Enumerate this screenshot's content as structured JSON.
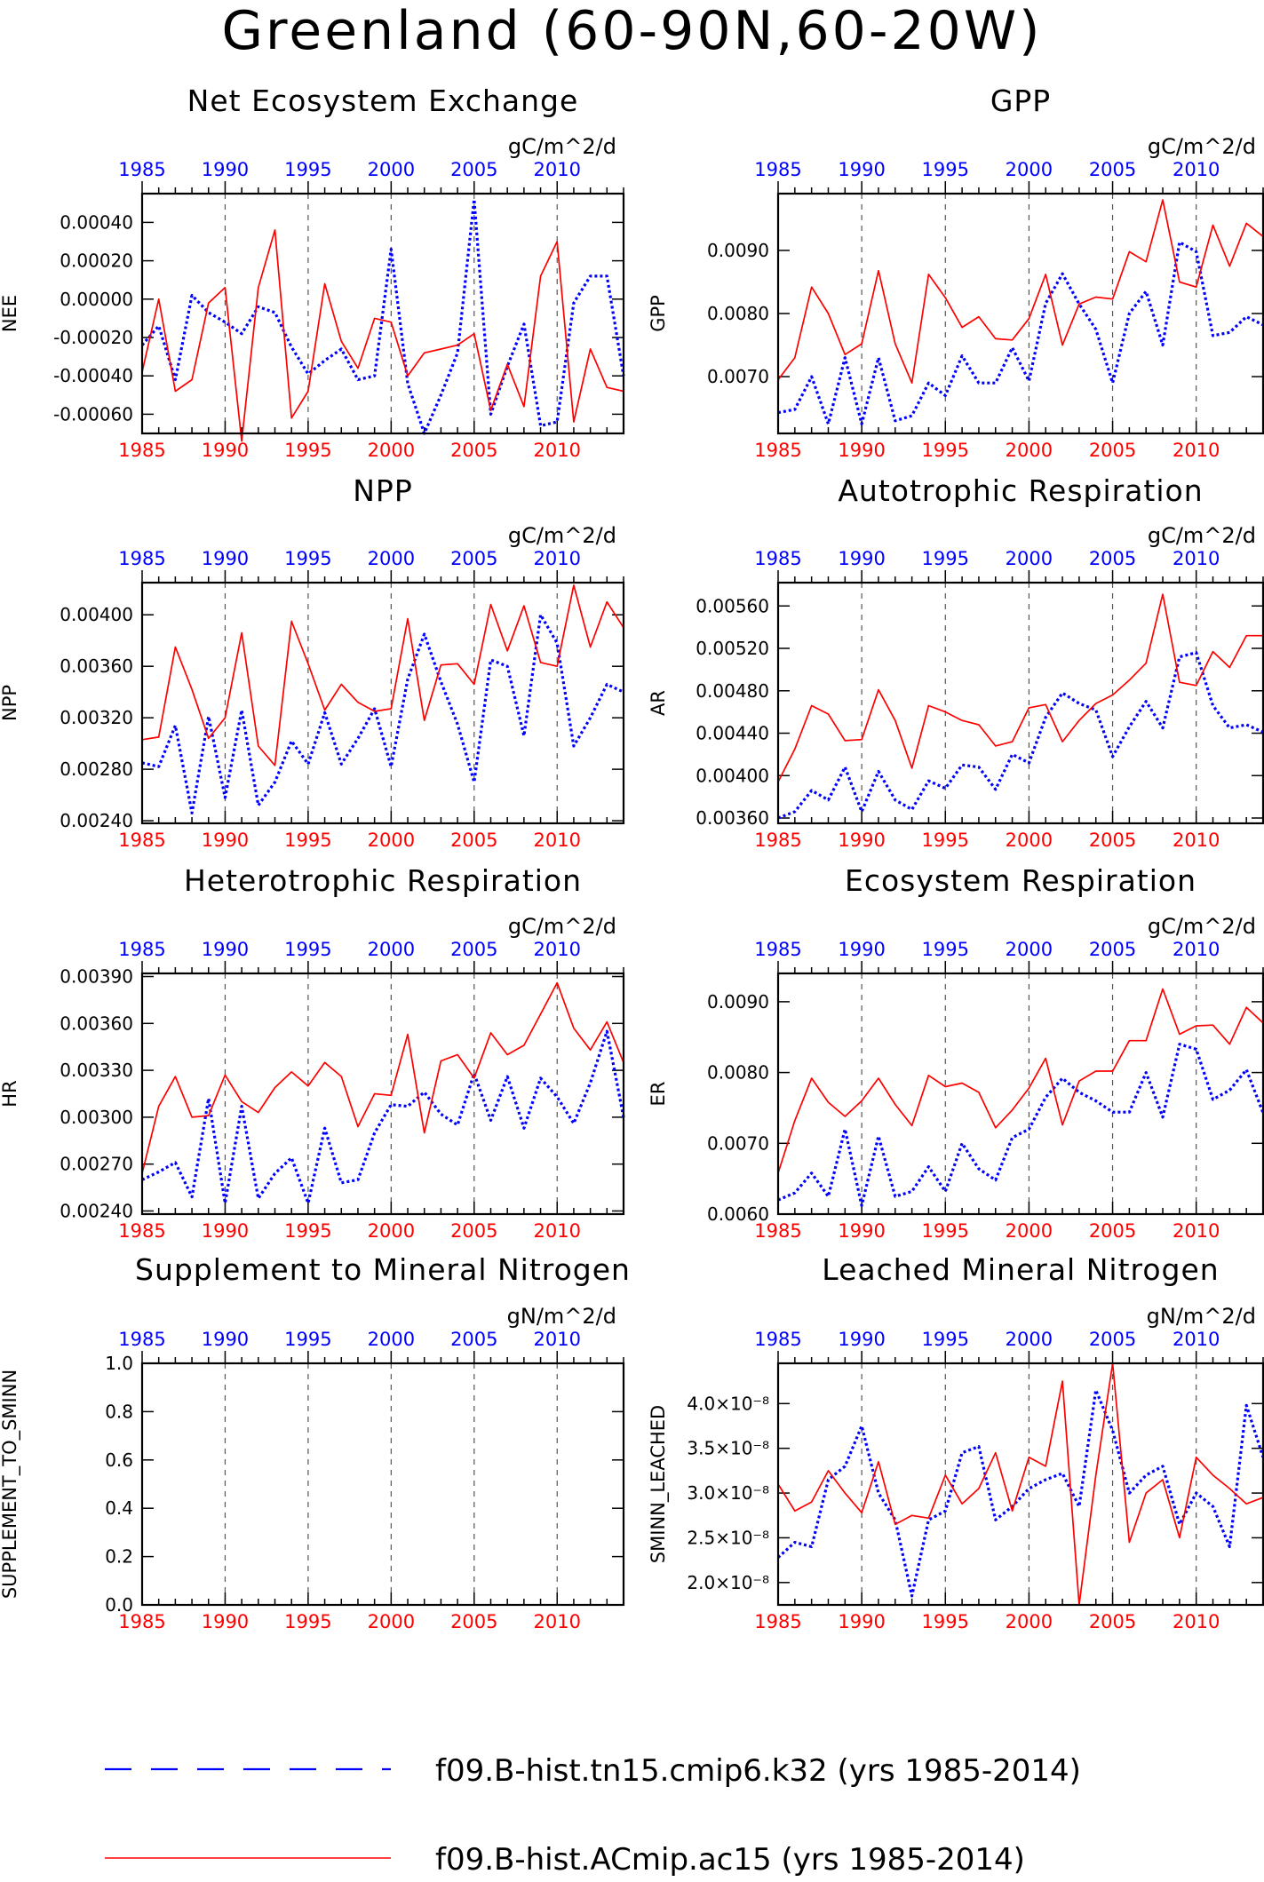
{
  "title": "Greenland (60-90N,60-20W)",
  "colors": {
    "series_a": "#0000ff",
    "series_b": "#ff0000",
    "axis": "#000000"
  },
  "legend": [
    {
      "label": "f09.B-hist.tn15.cmip6.k32 (yrs 1985-2014)",
      "color": "#0000ff",
      "style": "dashed"
    },
    {
      "label": "f09.B-hist.ACmip.ac15 (yrs 1985-2014)",
      "color": "#ff0000",
      "style": "solid"
    }
  ],
  "chart_data": [
    {
      "type": "line",
      "title": "Net Ecosystem Exchange",
      "units": "gC/m^2/d",
      "ylabel": "NEE",
      "xlim": [
        1985,
        2014
      ],
      "ylim": [
        -0.0007,
        0.00055
      ],
      "yticks": [
        -0.0006,
        -0.0004,
        -0.0002,
        0.0,
        0.0002,
        0.0004
      ],
      "ytick_labels": [
        "-0.00060",
        "-0.00040",
        "-0.00020",
        "0.00000",
        "0.00020",
        "0.00040"
      ],
      "x": [
        1985,
        1986,
        1987,
        1988,
        1989,
        1990,
        1991,
        1992,
        1993,
        1994,
        1995,
        1996,
        1997,
        1998,
        1999,
        2000,
        2001,
        2002,
        2003,
        2004,
        2005,
        2006,
        2007,
        2008,
        2009,
        2010,
        2011,
        2012,
        2013,
        2014
      ],
      "series": [
        {
          "values": [
            -0.00024,
            -0.00014,
            -0.00042,
            2e-05,
            -7e-05,
            -0.00012,
            -0.00018,
            -4e-05,
            -7e-05,
            -0.00025,
            -0.00039,
            -0.00032,
            -0.00026,
            -0.00042,
            -0.0004,
            0.00026,
            -0.00044,
            -0.0007,
            -0.0005,
            -0.00028,
            0.00052,
            -0.0006,
            -0.00035,
            -0.00013,
            -0.00066,
            -0.00064,
            -2e-05,
            0.00012,
            0.00012,
            -0.0004
          ]
        },
        {
          "values": [
            -0.00038,
            0.0,
            -0.00048,
            -0.00042,
            -2e-05,
            6e-05,
            -0.00074,
            6e-05,
            0.00036,
            -0.00062,
            -0.00048,
            8e-05,
            -0.00022,
            -0.00036,
            -0.0001,
            -0.00012,
            -0.0004,
            -0.00028,
            -0.00026,
            -0.00024,
            -0.00018,
            -0.00058,
            -0.00034,
            -0.00056,
            0.00012,
            0.0003,
            -0.00064,
            -0.00026,
            -0.00046,
            -0.00048
          ]
        }
      ]
    },
    {
      "type": "line",
      "title": "GPP",
      "units": "gC/m^2/d",
      "ylabel": "GPP",
      "xlim": [
        1985,
        2014
      ],
      "ylim": [
        0.0061,
        0.0099
      ],
      "yticks": [
        0.007,
        0.008,
        0.009
      ],
      "ytick_labels": [
        "0.0070",
        "0.0080",
        "0.0090"
      ],
      "x": [
        1985,
        1986,
        1987,
        1988,
        1989,
        1990,
        1991,
        1992,
        1993,
        1994,
        1995,
        1996,
        1997,
        1998,
        1999,
        2000,
        2001,
        2002,
        2003,
        2004,
        2005,
        2006,
        2007,
        2008,
        2009,
        2010,
        2011,
        2012,
        2013,
        2014
      ],
      "series": [
        {
          "values": [
            0.00643,
            0.00648,
            0.007,
            0.00625,
            0.0073,
            0.00625,
            0.0073,
            0.0063,
            0.00638,
            0.0069,
            0.0067,
            0.00733,
            0.0069,
            0.0069,
            0.00746,
            0.00693,
            0.00816,
            0.00863,
            0.00815,
            0.00775,
            0.0069,
            0.008,
            0.00835,
            0.0075,
            0.00913,
            0.00898,
            0.00765,
            0.0077,
            0.00795,
            0.00782
          ]
        },
        {
          "values": [
            0.00695,
            0.0073,
            0.00842,
            0.008,
            0.00735,
            0.00752,
            0.00868,
            0.00752,
            0.0069,
            0.00862,
            0.00825,
            0.00778,
            0.00795,
            0.0076,
            0.00758,
            0.00792,
            0.00862,
            0.0075,
            0.00815,
            0.00826,
            0.00823,
            0.00898,
            0.00882,
            0.0098,
            0.0085,
            0.00842,
            0.0094,
            0.00875,
            0.00943,
            0.00922
          ]
        }
      ]
    },
    {
      "type": "line",
      "title": "NPP",
      "units": "gC/m^2/d",
      "ylabel": "NPP",
      "xlim": [
        1985,
        2014
      ],
      "ylim": [
        0.00238,
        0.00425
      ],
      "yticks": [
        0.0024,
        0.0028,
        0.0032,
        0.0036,
        0.004
      ],
      "ytick_labels": [
        "0.00240",
        "0.00280",
        "0.00320",
        "0.00360",
        "0.00400"
      ],
      "x": [
        1985,
        1986,
        1987,
        1988,
        1989,
        1990,
        1991,
        1992,
        1993,
        1994,
        1995,
        1996,
        1997,
        1998,
        1999,
        2000,
        2001,
        2002,
        2003,
        2004,
        2005,
        2006,
        2007,
        2008,
        2009,
        2010,
        2011,
        2012,
        2013,
        2014
      ],
      "series": [
        {
          "values": [
            0.00285,
            0.00282,
            0.00314,
            0.00246,
            0.00321,
            0.00258,
            0.00326,
            0.00252,
            0.0027,
            0.00302,
            0.00284,
            0.00324,
            0.00284,
            0.00304,
            0.00327,
            0.00282,
            0.0035,
            0.00385,
            0.00348,
            0.00315,
            0.0027,
            0.00365,
            0.0036,
            0.00306,
            0.004,
            0.00378,
            0.00298,
            0.0032,
            0.00346,
            0.0034
          ]
        },
        {
          "values": [
            0.00303,
            0.00305,
            0.00375,
            0.00342,
            0.00304,
            0.0032,
            0.00386,
            0.00298,
            0.00283,
            0.00395,
            0.00362,
            0.00326,
            0.00346,
            0.00332,
            0.00325,
            0.00327,
            0.00397,
            0.00318,
            0.00361,
            0.00362,
            0.00346,
            0.00408,
            0.00372,
            0.00407,
            0.00363,
            0.0036,
            0.00423,
            0.00375,
            0.0041,
            0.0039
          ]
        }
      ]
    },
    {
      "type": "line",
      "title": "Autotrophic Respiration",
      "units": "gC/m^2/d",
      "ylabel": "AR",
      "xlim": [
        1985,
        2014
      ],
      "ylim": [
        0.00355,
        0.00582
      ],
      "yticks": [
        0.0036,
        0.004,
        0.0044,
        0.0048,
        0.0052,
        0.0056
      ],
      "ytick_labels": [
        "0.00360",
        "0.00400",
        "0.00440",
        "0.00480",
        "0.00520",
        "0.00560"
      ],
      "x": [
        1985,
        1986,
        1987,
        1988,
        1989,
        1990,
        1991,
        1992,
        1993,
        1994,
        1995,
        1996,
        1997,
        1998,
        1999,
        2000,
        2001,
        2002,
        2003,
        2004,
        2005,
        2006,
        2007,
        2008,
        2009,
        2010,
        2011,
        2012,
        2013,
        2014
      ],
      "series": [
        {
          "values": [
            0.0036,
            0.00366,
            0.00386,
            0.00377,
            0.00408,
            0.00366,
            0.00404,
            0.00377,
            0.00368,
            0.00395,
            0.00388,
            0.0041,
            0.00408,
            0.00387,
            0.0042,
            0.00412,
            0.00455,
            0.00478,
            0.00468,
            0.00462,
            0.00418,
            0.00446,
            0.0047,
            0.00445,
            0.00512,
            0.00516,
            0.00466,
            0.00445,
            0.00448,
            0.00441
          ]
        },
        {
          "values": [
            0.00394,
            0.00425,
            0.00466,
            0.00458,
            0.00433,
            0.00434,
            0.00481,
            0.00452,
            0.00407,
            0.00466,
            0.0046,
            0.00452,
            0.00448,
            0.00428,
            0.00432,
            0.00464,
            0.00467,
            0.00432,
            0.00452,
            0.00468,
            0.00476,
            0.0049,
            0.00506,
            0.00571,
            0.00488,
            0.00485,
            0.00517,
            0.00502,
            0.00532,
            0.00532
          ]
        }
      ]
    },
    {
      "type": "line",
      "title": "Heterotrophic Respiration",
      "units": "gC/m^2/d",
      "ylabel": "HR",
      "xlim": [
        1985,
        2014
      ],
      "ylim": [
        0.00238,
        0.00392
      ],
      "yticks": [
        0.0024,
        0.0027,
        0.003,
        0.0033,
        0.0036,
        0.0039
      ],
      "ytick_labels": [
        "0.00240",
        "0.00270",
        "0.00300",
        "0.00330",
        "0.00360",
        "0.00390"
      ],
      "x": [
        1985,
        1986,
        1987,
        1988,
        1989,
        1990,
        1991,
        1992,
        1993,
        1994,
        1995,
        1996,
        1997,
        1998,
        1999,
        2000,
        2001,
        2002,
        2003,
        2004,
        2005,
        2006,
        2007,
        2008,
        2009,
        2010,
        2011,
        2012,
        2013,
        2014
      ],
      "series": [
        {
          "values": [
            0.0026,
            0.00265,
            0.00271,
            0.00249,
            0.00312,
            0.00245,
            0.00307,
            0.00248,
            0.00264,
            0.00274,
            0.00245,
            0.00293,
            0.00258,
            0.0026,
            0.0029,
            0.00308,
            0.00307,
            0.00316,
            0.00302,
            0.00295,
            0.00328,
            0.00298,
            0.00326,
            0.00293,
            0.00325,
            0.00313,
            0.00296,
            0.00322,
            0.00355,
            0.003
          ]
        },
        {
          "values": [
            0.00264,
            0.00307,
            0.00326,
            0.003,
            0.00301,
            0.00327,
            0.0031,
            0.00303,
            0.00319,
            0.00329,
            0.0032,
            0.00335,
            0.00326,
            0.00294,
            0.00315,
            0.00314,
            0.00353,
            0.0029,
            0.00336,
            0.0034,
            0.00325,
            0.00354,
            0.0034,
            0.00346,
            0.00366,
            0.00386,
            0.00357,
            0.00343,
            0.00361,
            0.00335
          ]
        }
      ]
    },
    {
      "type": "line",
      "title": "Ecosystem Respiration",
      "units": "gC/m^2/d",
      "ylabel": "ER",
      "xlim": [
        1985,
        2014
      ],
      "ylim": [
        0.006,
        0.0094
      ],
      "yticks": [
        0.006,
        0.007,
        0.008,
        0.009
      ],
      "ytick_labels": [
        "0.0060",
        "0.0070",
        "0.0080",
        "0.0090"
      ],
      "x": [
        1985,
        1986,
        1987,
        1988,
        1989,
        1990,
        1991,
        1992,
        1993,
        1994,
        1995,
        1996,
        1997,
        1998,
        1999,
        2000,
        2001,
        2002,
        2003,
        2004,
        2005,
        2006,
        2007,
        2008,
        2009,
        2010,
        2011,
        2012,
        2013,
        2014
      ],
      "series": [
        {
          "values": [
            0.0062,
            0.0063,
            0.00658,
            0.00625,
            0.0072,
            0.00612,
            0.0071,
            0.00625,
            0.00632,
            0.00667,
            0.00632,
            0.007,
            0.00664,
            0.00648,
            0.00708,
            0.0072,
            0.00765,
            0.00792,
            0.00772,
            0.0076,
            0.00744,
            0.00744,
            0.008,
            0.00737,
            0.0084,
            0.00833,
            0.00762,
            0.00775,
            0.00804,
            0.00743
          ]
        },
        {
          "values": [
            0.00658,
            0.00732,
            0.00792,
            0.00758,
            0.00738,
            0.0076,
            0.00792,
            0.00755,
            0.00725,
            0.00796,
            0.0078,
            0.00785,
            0.00772,
            0.00722,
            0.00747,
            0.00778,
            0.0082,
            0.00726,
            0.00788,
            0.00802,
            0.00802,
            0.00845,
            0.00845,
            0.00918,
            0.00854,
            0.00866,
            0.00867,
            0.0084,
            0.00892,
            0.0087
          ]
        }
      ]
    },
    {
      "type": "line",
      "title": "Supplement to Mineral Nitrogen",
      "units": "gN/m^2/d",
      "ylabel": "SUPPLEMENT_TO_SMINN",
      "xlim": [
        1985,
        2014
      ],
      "ylim": [
        0.0,
        1.0
      ],
      "yticks": [
        0.0,
        0.2,
        0.4,
        0.6,
        0.8,
        1.0
      ],
      "ytick_labels": [
        "0.0",
        "0.2",
        "0.4",
        "0.6",
        "0.8",
        "1.0"
      ],
      "x": [],
      "series": []
    },
    {
      "type": "line",
      "title": "Leached Mineral Nitrogen",
      "units": "gN/m^2/d",
      "ylabel": "SMINN_LEACHED",
      "xlim": [
        1985,
        2014
      ],
      "ylim": [
        1.75e-08,
        4.45e-08
      ],
      "yticks": [
        2e-08,
        2.5e-08,
        3e-08,
        3.5e-08,
        4e-08
      ],
      "ytick_labels": [
        "2.0×10⁻⁸",
        "2.5×10⁻⁸",
        "3.0×10⁻⁸",
        "3.5×10⁻⁸",
        "4.0×10⁻⁸"
      ],
      "x": [
        1985,
        1986,
        1987,
        1988,
        1989,
        1990,
        1991,
        1992,
        1993,
        1994,
        1995,
        1996,
        1997,
        1998,
        1999,
        2000,
        2001,
        2002,
        2003,
        2004,
        2005,
        2006,
        2007,
        2008,
        2009,
        2010,
        2011,
        2012,
        2013,
        2014
      ],
      "series": [
        {
          "values": [
            2.28e-08,
            2.45e-08,
            2.4e-08,
            3.15e-08,
            3.3e-08,
            3.75e-08,
            3e-08,
            2.7e-08,
            1.85e-08,
            2.7e-08,
            2.8e-08,
            3.45e-08,
            3.52e-08,
            2.7e-08,
            2.85e-08,
            3.05e-08,
            3.15e-08,
            3.22e-08,
            2.85e-08,
            4.15e-08,
            3.7e-08,
            3e-08,
            3.2e-08,
            3.3e-08,
            2.65e-08,
            3e-08,
            2.85e-08,
            2.4e-08,
            3.98e-08,
            3.4e-08
          ]
        },
        {
          "values": [
            3.1e-08,
            2.8e-08,
            2.9e-08,
            3.25e-08,
            3e-08,
            2.78e-08,
            3.35e-08,
            2.65e-08,
            2.75e-08,
            2.72e-08,
            3.2e-08,
            2.88e-08,
            3.05e-08,
            3.45e-08,
            2.8e-08,
            3.4e-08,
            3.3e-08,
            4.25e-08,
            1.75e-08,
            3.2e-08,
            4.45e-08,
            2.45e-08,
            3e-08,
            3.15e-08,
            2.5e-08,
            3.4e-08,
            3.2e-08,
            3.05e-08,
            2.88e-08,
            2.95e-08
          ]
        }
      ]
    }
  ]
}
